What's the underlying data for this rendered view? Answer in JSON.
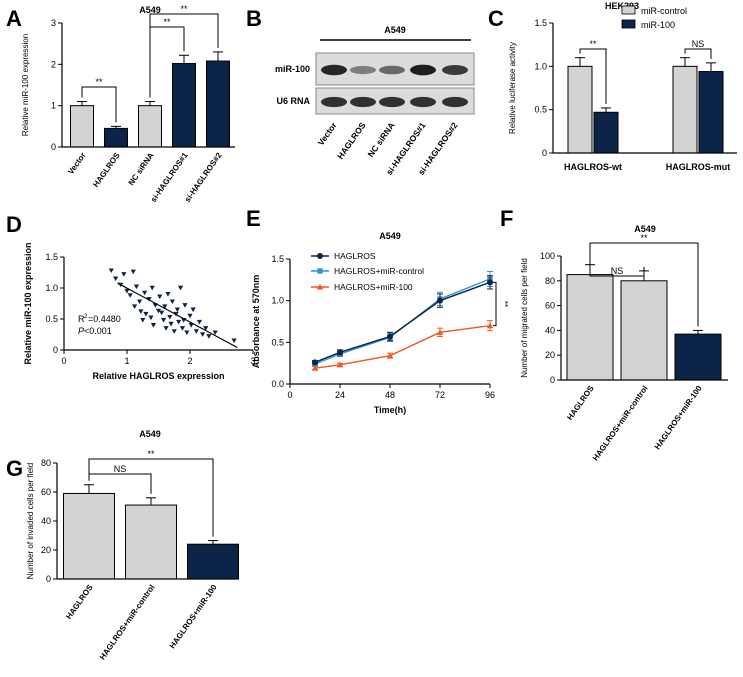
{
  "figure": {
    "type": "multi-panel scientific figure"
  },
  "colors": {
    "light": "#d3d3d3",
    "dark": "#0b2447",
    "line_haglros": "#0b2447",
    "line_mircontrol": "#3a8fd8",
    "line_mir100": "#ee5a24"
  },
  "chart_data": [
    {
      "panel": "A",
      "type": "bar",
      "title": "A549",
      "ylabel": "Relative miR-100 expression",
      "categories": [
        "Vector",
        "HAGLROS",
        "NC siRNA",
        "si-HAGLROS#1",
        "si-HAGLROS#2"
      ],
      "values": [
        1.0,
        0.45,
        1.0,
        2.02,
        2.08
      ],
      "errors": [
        0.1,
        0.05,
        0.1,
        0.2,
        0.22
      ],
      "colors": [
        "light",
        "dark",
        "light",
        "dark",
        "dark"
      ],
      "ylim": [
        0,
        3
      ],
      "yticks": [
        "0",
        "1",
        "2",
        "3"
      ],
      "significance": [
        {
          "from": 0,
          "to": 1,
          "label": "**"
        },
        {
          "from": 2,
          "to": 3,
          "label": "**"
        },
        {
          "from": 2,
          "to": 4,
          "label": "**"
        }
      ]
    },
    {
      "panel": "B",
      "type": "table",
      "title": "A549",
      "rows": [
        "miR-100",
        "U6 RNA"
      ],
      "lanes": [
        "Vector",
        "HAGLROS",
        "NC siRNA",
        "si-HAGLROS#1",
        "si-HAGLROS#2"
      ],
      "band_intensity": {
        "miR-100": [
          0.9,
          0.45,
          0.55,
          0.95,
          0.8
        ],
        "U6 RNA": [
          0.85,
          0.85,
          0.85,
          0.85,
          0.85
        ]
      }
    },
    {
      "panel": "C",
      "type": "bar",
      "title": "HEK293",
      "ylabel": "Relative luciferase activity",
      "legend": [
        "miR-control",
        "miR-100"
      ],
      "categories": [
        "HAGLROS-wt",
        "HAGLROS-mut"
      ],
      "series": [
        {
          "name": "miR-control",
          "values": [
            1.0,
            1.0
          ],
          "errors": [
            0.1,
            0.1
          ]
        },
        {
          "name": "miR-100",
          "values": [
            0.47,
            0.94
          ],
          "errors": [
            0.05,
            0.1
          ]
        }
      ],
      "ylim": [
        0,
        1.5
      ],
      "yticks": [
        "0",
        "0.5",
        "1.0",
        "1.5"
      ],
      "significance": [
        {
          "group": 0,
          "label": "**"
        },
        {
          "group": 1,
          "label": "NS"
        }
      ]
    },
    {
      "panel": "D",
      "type": "scatter",
      "xlabel": "Relative HAGLROS expression",
      "ylabel": "Relative miR-100 expression",
      "xlim": [
        0,
        3
      ],
      "ylim": [
        0,
        1.5
      ],
      "xticks": [
        "0",
        "1",
        "2",
        "3"
      ],
      "yticks": [
        "0",
        "0.5",
        "1.0",
        "1.5"
      ],
      "annotation_r2_label": "R",
      "annotation_r2_sup": "2",
      "annotation_r2_value": "=0.4480",
      "annotation_p_label": "P",
      "annotation_p_value": "<0.001",
      "fit": {
        "x": [
          0.85,
          2.75
        ],
        "y": [
          1.08,
          0.04
        ]
      },
      "points": [
        [
          0.75,
          1.28
        ],
        [
          0.82,
          1.15
        ],
        [
          0.9,
          1.05
        ],
        [
          0.95,
          1.22
        ],
        [
          1.0,
          0.95
        ],
        [
          1.05,
          0.88
        ],
        [
          1.1,
          1.26
        ],
        [
          1.12,
          0.7
        ],
        [
          1.15,
          1.02
        ],
        [
          1.2,
          0.78
        ],
        [
          1.22,
          0.62
        ],
        [
          1.25,
          0.48
        ],
        [
          1.28,
          0.92
        ],
        [
          1.3,
          0.58
        ],
        [
          1.35,
          0.82
        ],
        [
          1.38,
          0.52
        ],
        [
          1.4,
          1.0
        ],
        [
          1.42,
          0.4
        ],
        [
          1.45,
          0.72
        ],
        [
          1.5,
          0.63
        ],
        [
          1.52,
          0.86
        ],
        [
          1.55,
          0.6
        ],
        [
          1.58,
          0.48
        ],
        [
          1.6,
          0.7
        ],
        [
          1.62,
          0.35
        ],
        [
          1.65,
          0.9
        ],
        [
          1.68,
          0.53
        ],
        [
          1.7,
          0.42
        ],
        [
          1.72,
          0.78
        ],
        [
          1.75,
          0.3
        ],
        [
          1.78,
          0.58
        ],
        [
          1.8,
          0.65
        ],
        [
          1.82,
          0.45
        ],
        [
          1.85,
          1.0
        ],
        [
          1.88,
          0.35
        ],
        [
          1.9,
          0.48
        ],
        [
          1.92,
          0.72
        ],
        [
          1.95,
          0.28
        ],
        [
          2.0,
          0.55
        ],
        [
          2.02,
          0.4
        ],
        [
          2.05,
          0.65
        ],
        [
          2.1,
          0.3
        ],
        [
          2.15,
          0.45
        ],
        [
          2.2,
          0.25
        ],
        [
          2.25,
          0.35
        ],
        [
          2.3,
          0.22
        ],
        [
          2.4,
          0.28
        ],
        [
          2.7,
          0.15
        ]
      ]
    },
    {
      "panel": "E",
      "type": "line",
      "title": "A549",
      "xlabel": "Time(h)",
      "ylabel": "Absorbance at 570nm",
      "x": [
        12,
        24,
        48,
        72,
        96
      ],
      "xticks": [
        "0",
        "24",
        "48",
        "72",
        "96"
      ],
      "yticks": [
        "0.0",
        "0.5",
        "1.0",
        "1.5"
      ],
      "xlim": [
        0,
        96
      ],
      "ylim": [
        0,
        1.5
      ],
      "series": [
        {
          "name": "HAGLROS",
          "values": [
            0.26,
            0.38,
            0.57,
            1.0,
            1.22
          ],
          "errors": [
            0.02,
            0.03,
            0.05,
            0.08,
            0.08
          ],
          "color": "line_haglros",
          "marker": "circle"
        },
        {
          "name": "HAGLROS+miR-control",
          "values": [
            0.24,
            0.36,
            0.56,
            1.02,
            1.26
          ],
          "errors": [
            0.02,
            0.03,
            0.05,
            0.08,
            0.09
          ],
          "color": "line_mircontrol",
          "marker": "square"
        },
        {
          "name": "HAGLROS+miR-100",
          "values": [
            0.19,
            0.23,
            0.34,
            0.62,
            0.7
          ],
          "errors": [
            0.02,
            0.02,
            0.03,
            0.05,
            0.06
          ],
          "color": "line_mir100",
          "marker": "triangle"
        }
      ],
      "significance_label": "**"
    },
    {
      "panel": "F",
      "type": "bar",
      "title": "A549",
      "ylabel": "Number of migrated cells per field",
      "categories": [
        "HAGLROS",
        "HAGLROS+miR-control",
        "HAGLROS+miR-100"
      ],
      "values": [
        85,
        80,
        37
      ],
      "errors": [
        8,
        8,
        3
      ],
      "colors": [
        "light",
        "light",
        "dark"
      ],
      "ylim": [
        0,
        100
      ],
      "yticks": [
        "0",
        "20",
        "40",
        "60",
        "80",
        "100"
      ],
      "significance": [
        {
          "from": 0,
          "to": 1,
          "label": "NS"
        },
        {
          "from": 0,
          "to": 2,
          "label": "**"
        }
      ]
    },
    {
      "panel": "G",
      "type": "bar",
      "title": "A549",
      "ylabel": "Number of invaded cells per field",
      "categories": [
        "HAGLROS",
        "HAGLROS+miR-control",
        "HAGLROS+miR-100"
      ],
      "values": [
        59,
        51,
        24
      ],
      "errors": [
        6,
        5,
        2.5
      ],
      "colors": [
        "light",
        "light",
        "dark"
      ],
      "ylim": [
        0,
        80
      ],
      "yticks": [
        "0",
        "20",
        "40",
        "60",
        "80"
      ],
      "significance": [
        {
          "from": 0,
          "to": 1,
          "label": "NS"
        },
        {
          "from": 0,
          "to": 2,
          "label": "**"
        }
      ]
    }
  ]
}
